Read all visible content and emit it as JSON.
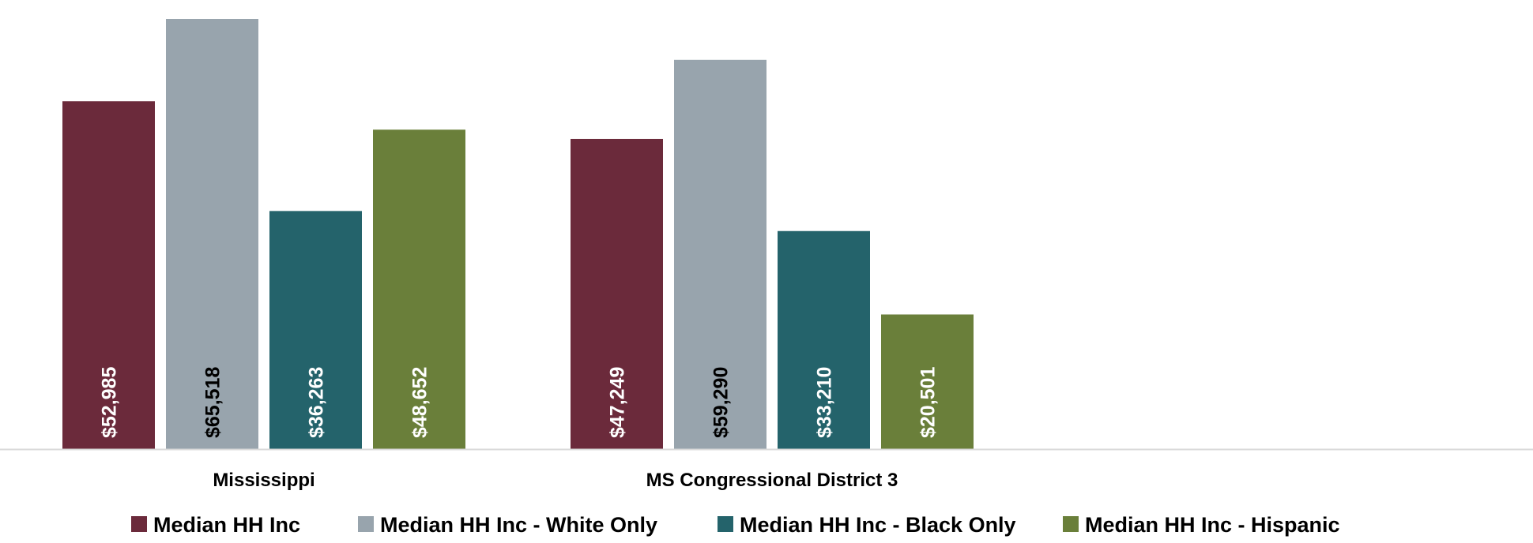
{
  "chart_data": {
    "type": "bar",
    "title": "",
    "xlabel": "",
    "ylabel": "",
    "categories": [
      "Mississippi",
      "MS Congressional District 3"
    ],
    "series": [
      {
        "name": "Median HH Inc",
        "color": "#6b2a3b",
        "label_color": "#ffffff",
        "values": [
          52985,
          47249
        ],
        "labels": [
          "$52,985",
          "$47,249"
        ]
      },
      {
        "name": "Median HH Inc - White Only",
        "color": "#98a4ad",
        "label_color": "#000000",
        "values": [
          65518,
          59290
        ],
        "labels": [
          "$65,518",
          "$59,290"
        ]
      },
      {
        "name": "Median HH Inc - Black Only",
        "color": "#24636b",
        "label_color": "#ffffff",
        "values": [
          36263,
          33210
        ],
        "labels": [
          "$36,263",
          "$33,210"
        ]
      },
      {
        "name": "Median HH Inc - Hispanic",
        "color": "#6a7f3a",
        "label_color": "#ffffff",
        "values": [
          48652,
          20501
        ],
        "labels": [
          "$48,652",
          "$20,501"
        ]
      }
    ],
    "ylim": [
      0,
      67000
    ],
    "grid": false,
    "legend_position": "bottom",
    "axis_line_color": "#d9d9d9"
  }
}
